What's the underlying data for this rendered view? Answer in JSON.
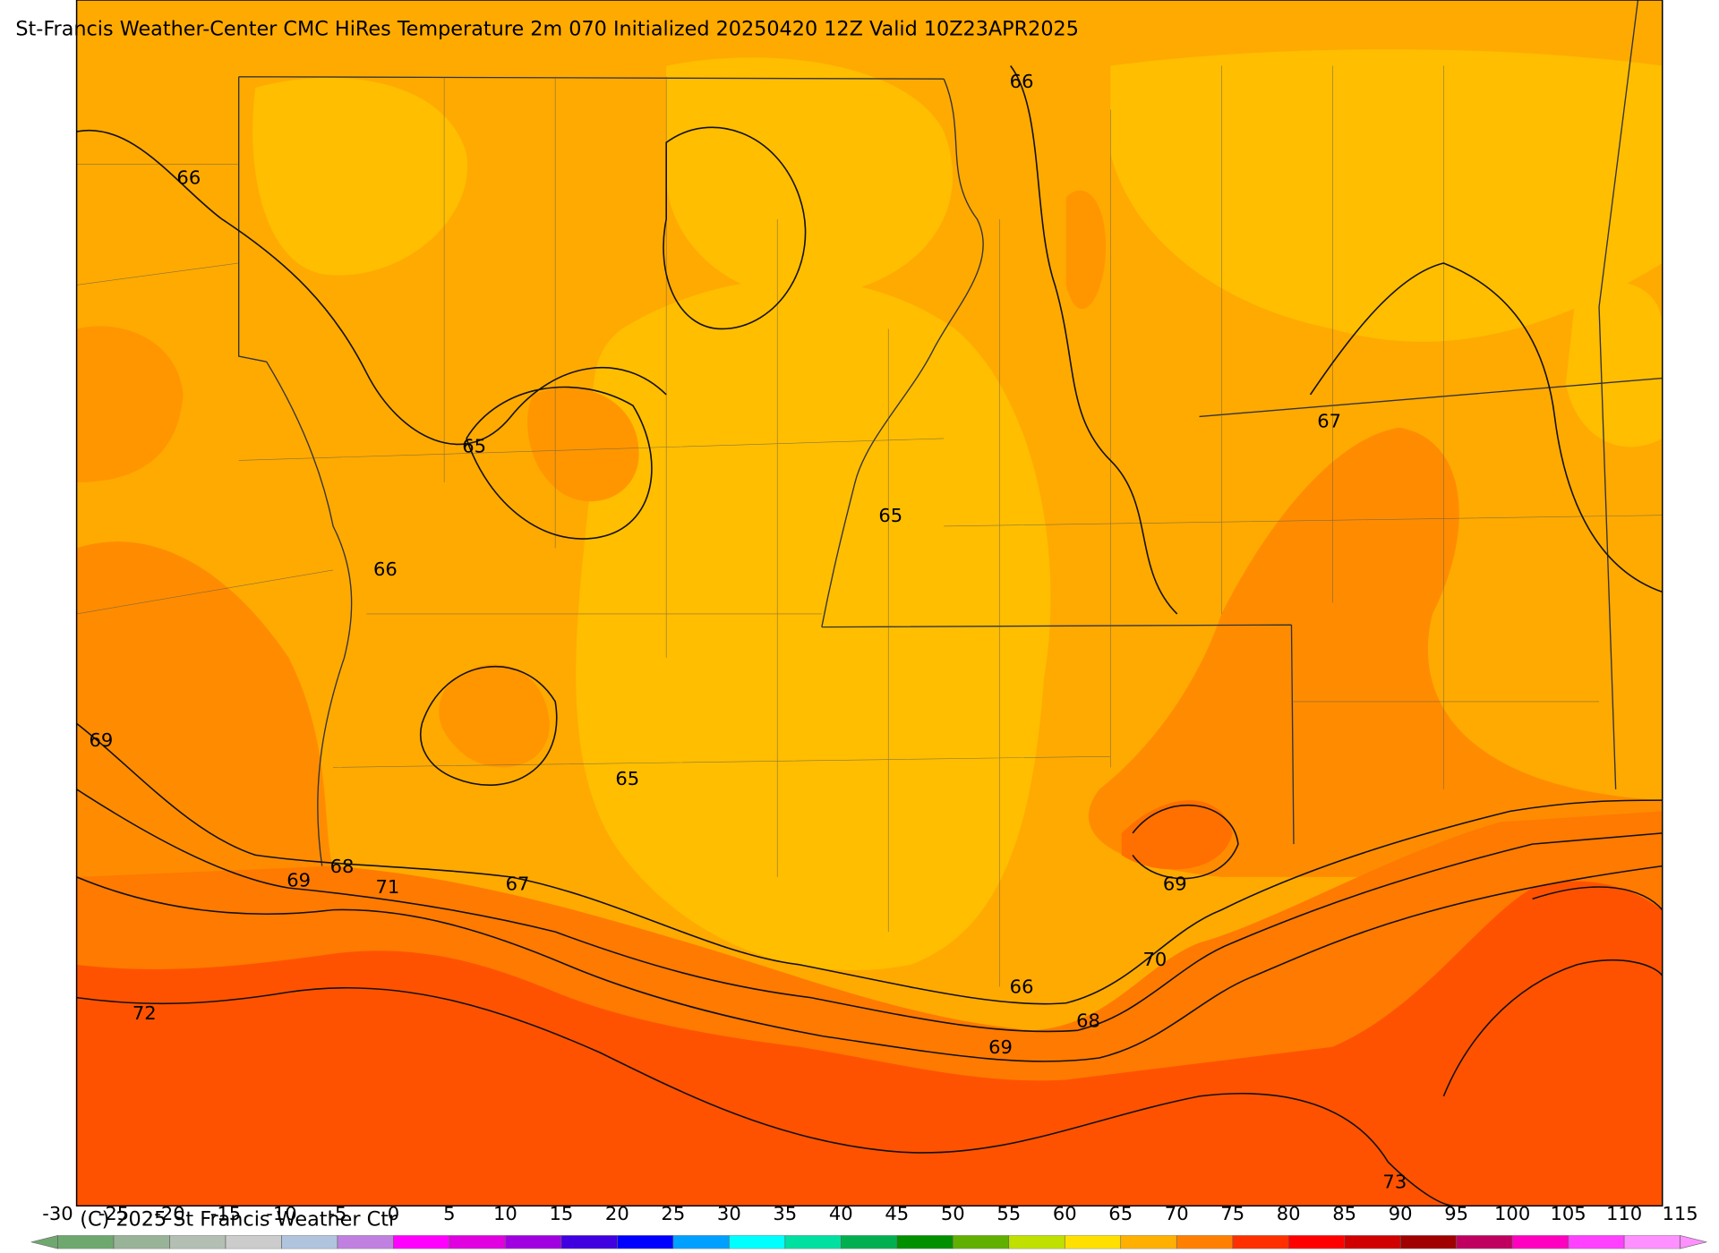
{
  "header": {
    "title": "St-Francis Weather-Center CMC HiRes Temperature 2m  070 Initialized 20250420 12Z Valid 10Z23APR2025"
  },
  "map": {
    "contour_labels": [
      66,
      66,
      65,
      67,
      65,
      66,
      69,
      65,
      68,
      69,
      71,
      67,
      69,
      70,
      66,
      72,
      68,
      69,
      73
    ]
  },
  "colorbar": {
    "ticks": [
      -30,
      -25,
      -20,
      -15,
      -10,
      -5,
      0,
      5,
      10,
      15,
      20,
      25,
      30,
      35,
      40,
      45,
      50,
      55,
      60,
      65,
      70,
      75,
      80,
      85,
      90,
      95,
      100,
      105,
      110,
      115
    ],
    "colors": [
      "#6fa86f",
      "#99b399",
      "#b3bfb3",
      "#cccccc",
      "#b0c4de",
      "#c080e0",
      "#ff00ff",
      "#e000e0",
      "#a000e0",
      "#4000e0",
      "#0000ff",
      "#00a0ff",
      "#00ffff",
      "#00e0a0",
      "#00b050",
      "#009000",
      "#60b000",
      "#c0e000",
      "#ffe000",
      "#ffb000",
      "#ff8000",
      "#ff3000",
      "#ff0000",
      "#d00000",
      "#a00000",
      "#c00060",
      "#ff00c0",
      "#ff40ff",
      "#ff90ff"
    ]
  },
  "footer": {
    "copyright": "(C) 2025 St Francis Weather Ctr"
  }
}
